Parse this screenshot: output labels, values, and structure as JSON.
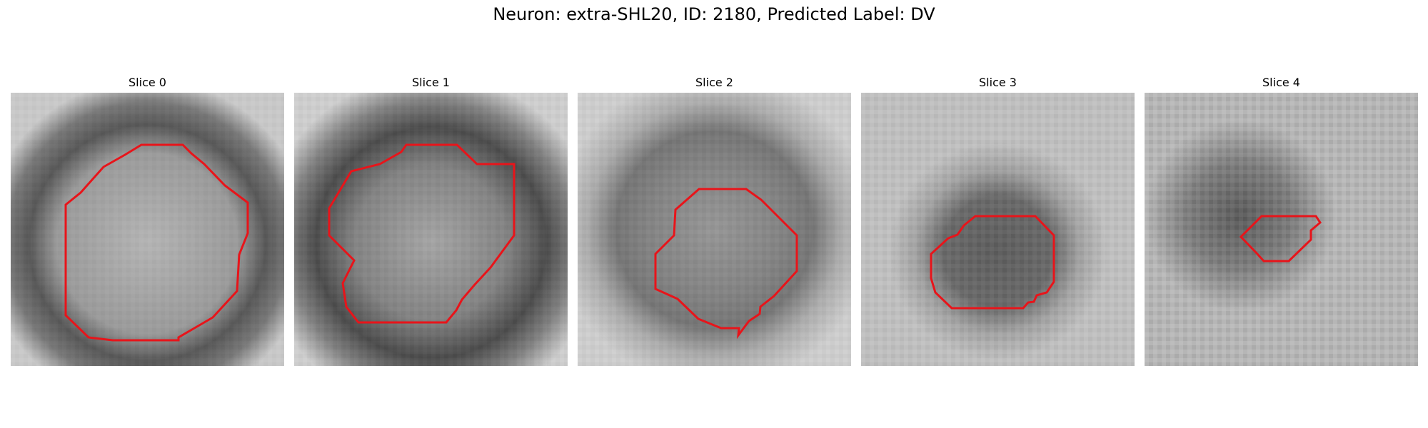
{
  "figure": {
    "title": "Neuron: extra-SHL20, ID: 2180, Predicted Label: DV"
  },
  "slices": [
    {
      "title": "Slice 0"
    },
    {
      "title": "Slice 1"
    },
    {
      "title": "Slice 2"
    },
    {
      "title": "Slice 3"
    },
    {
      "title": "Slice 4"
    }
  ],
  "colors": {
    "contour": "#e8141a",
    "background": "#ffffff"
  }
}
